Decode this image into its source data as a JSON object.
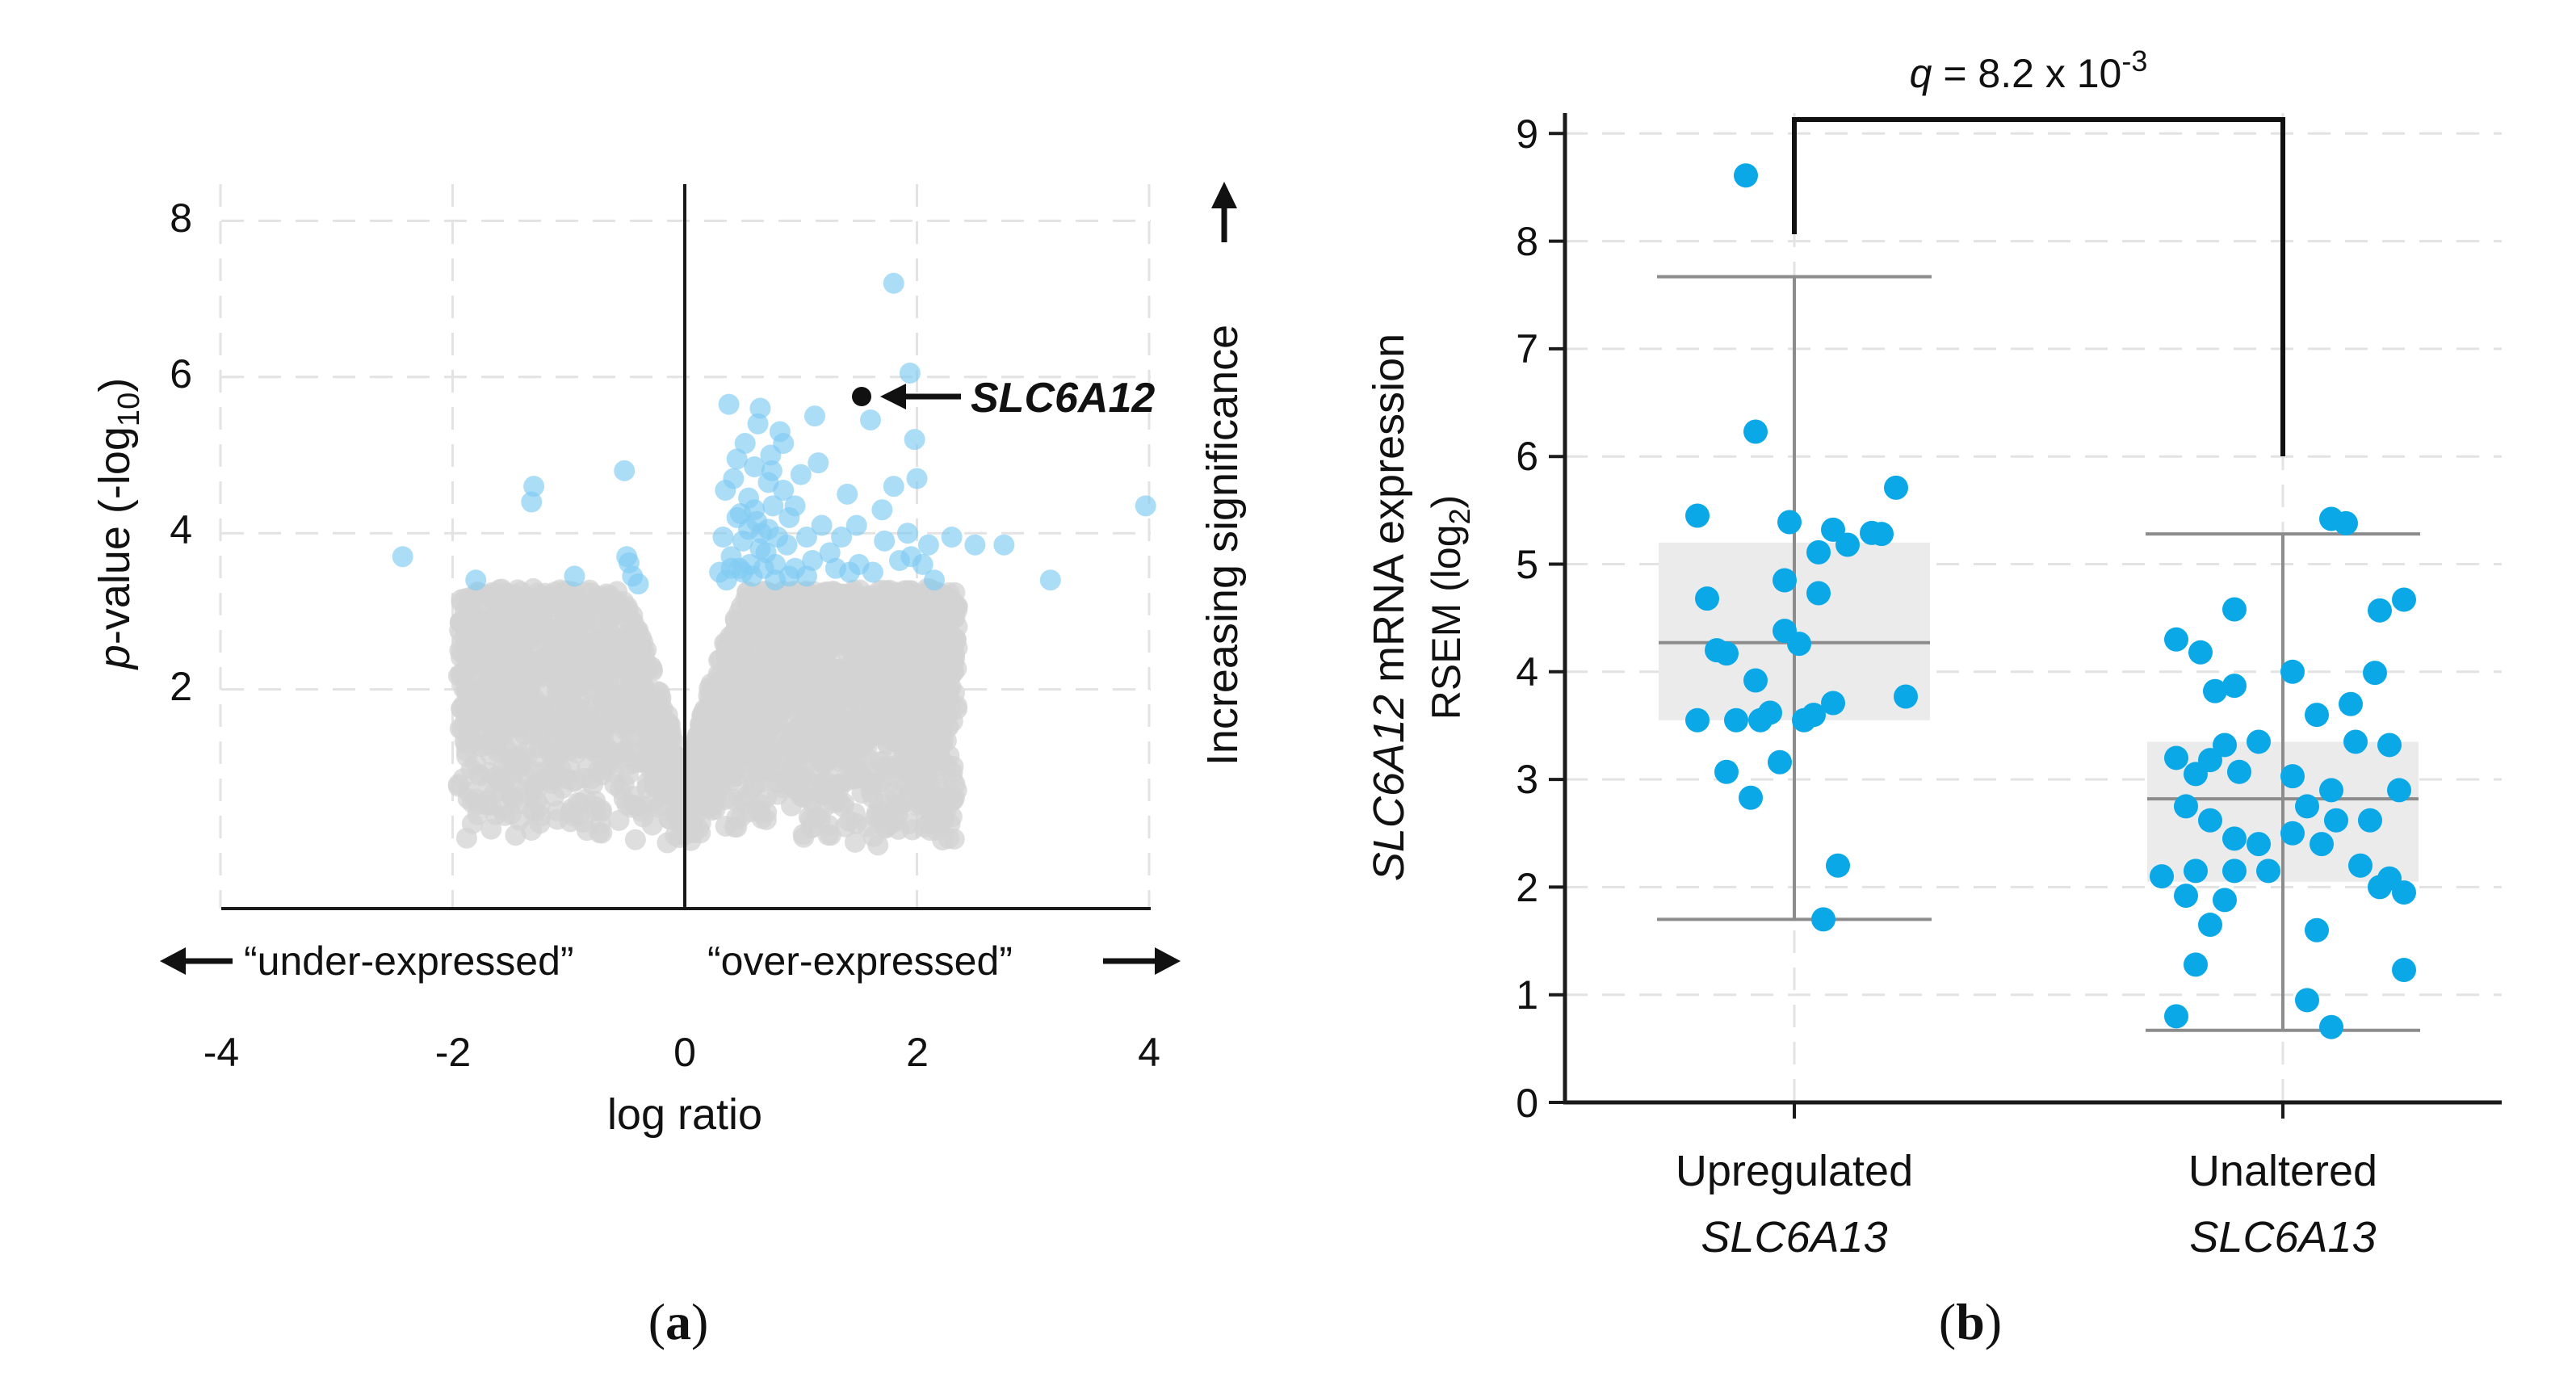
{
  "colors": {
    "highlight": "#0BA8E8",
    "highlight_light": "#7FCBF2",
    "background_points": "#D3D3D3",
    "box_fill": "#EBEBEB",
    "whisker": "#8C8C8C",
    "grid": "#E3E3E3",
    "axis": "#1A1A1A"
  },
  "panel_a": {
    "caption_open": "(",
    "caption_letter": "a",
    "caption_close": ")",
    "y_label_italic": "p",
    "y_label_rest": "-value (-log",
    "y_label_sub": "10",
    "y_label_close": ")",
    "x_label": "log ratio",
    "x_ticks": [
      "-4",
      "-2",
      "0",
      "2",
      "4"
    ],
    "y_ticks": [
      "2",
      "4",
      "6",
      "8"
    ],
    "under_label": "“under-expressed”",
    "over_label": "“over-expressed”",
    "right_label": "Increasing significance",
    "gene_label": "SLC6A12"
  },
  "panel_b": {
    "caption_open": "(",
    "caption_letter": "b",
    "caption_close": ")",
    "y_label_line1_italic": "SLC6A12",
    "y_label_line1_rest": " mRNA expression",
    "y_label_line2": "RSEM (log",
    "y_label_line2_sub": "2",
    "y_label_line2_close": ")",
    "q_italic": "q",
    "q_text": " = 8.2 x 10",
    "q_sup": "-3",
    "y_ticks": [
      "0",
      "1",
      "2",
      "3",
      "4",
      "5",
      "6",
      "7",
      "8",
      "9"
    ],
    "group1_line1": "Upregulated",
    "group1_line2": "SLC6A13",
    "group2_line1": "Unaltered",
    "group2_line2": "SLC6A13"
  },
  "chart_data": [
    {
      "type": "scatter",
      "title": "",
      "xlabel": "log ratio",
      "ylabel": "p-value (-log10)",
      "xlim": [
        -4,
        4
      ],
      "ylim": [
        -0.8,
        8.6
      ],
      "x_ticks": [
        -4,
        -2,
        0,
        2,
        4
      ],
      "y_ticks": [
        2,
        4,
        6,
        8
      ],
      "grid": true,
      "annotations": [
        "“under-expressed”",
        "“over-expressed”",
        "Increasing significance",
        "SLC6A12"
      ],
      "highlighted_gene": {
        "name": "SLC6A12",
        "x": 1.53,
        "y": 5.7
      },
      "significant_points": [
        [
          -2.43,
          3.7
        ],
        [
          -1.8,
          3.4
        ],
        [
          -1.3,
          4.6
        ],
        [
          -1.32,
          4.4
        ],
        [
          -0.95,
          3.45
        ],
        [
          -0.52,
          4.8
        ],
        [
          -0.5,
          3.7
        ],
        [
          -0.48,
          3.62
        ],
        [
          -0.45,
          3.45
        ],
        [
          -0.4,
          3.35
        ],
        [
          0.38,
          5.65
        ],
        [
          0.45,
          4.2
        ],
        [
          0.4,
          3.7
        ],
        [
          0.36,
          3.4
        ],
        [
          0.33,
          3.95
        ],
        [
          0.47,
          3.55
        ],
        [
          0.52,
          5.15
        ],
        [
          0.55,
          4.45
        ],
        [
          0.5,
          3.9
        ],
        [
          0.56,
          3.6
        ],
        [
          0.6,
          4.3
        ],
        [
          0.63,
          5.4
        ],
        [
          0.65,
          5.6
        ],
        [
          0.66,
          4.0
        ],
        [
          0.7,
          3.75
        ],
        [
          0.72,
          4.65
        ],
        [
          0.74,
          5.0
        ],
        [
          0.76,
          4.35
        ],
        [
          0.78,
          3.6
        ],
        [
          0.8,
          3.95
        ],
        [
          0.82,
          5.3
        ],
        [
          0.85,
          4.55
        ],
        [
          0.88,
          3.85
        ],
        [
          0.9,
          4.2
        ],
        [
          0.95,
          3.55
        ],
        [
          1.0,
          4.75
        ],
        [
          1.05,
          3.95
        ],
        [
          1.1,
          3.65
        ],
        [
          1.12,
          5.5
        ],
        [
          1.18,
          4.1
        ],
        [
          1.25,
          3.75
        ],
        [
          1.35,
          3.95
        ],
        [
          1.4,
          4.5
        ],
        [
          1.42,
          3.5
        ],
        [
          1.48,
          4.1
        ],
        [
          1.6,
          5.45
        ],
        [
          1.7,
          4.3
        ],
        [
          1.72,
          3.9
        ],
        [
          1.8,
          4.6
        ],
        [
          1.85,
          3.65
        ],
        [
          1.92,
          4.0
        ],
        [
          1.94,
          6.05
        ],
        [
          1.95,
          3.7
        ],
        [
          2.0,
          4.7
        ],
        [
          2.05,
          3.6
        ],
        [
          2.1,
          3.85
        ],
        [
          2.15,
          3.4
        ],
        [
          2.3,
          3.95
        ],
        [
          2.5,
          3.85
        ],
        [
          2.75,
          3.85
        ],
        [
          3.15,
          3.4
        ],
        [
          3.97,
          4.35
        ],
        [
          1.8,
          7.2
        ],
        [
          1.98,
          5.2
        ],
        [
          0.45,
          4.95
        ],
        [
          0.58,
          3.45
        ],
        [
          0.68,
          3.55
        ],
        [
          0.9,
          3.45
        ],
        [
          1.05,
          3.45
        ],
        [
          0.42,
          4.7
        ],
        [
          0.6,
          4.85
        ],
        [
          0.75,
          4.8
        ],
        [
          0.85,
          5.15
        ],
        [
          0.95,
          4.35
        ],
        [
          1.15,
          4.9
        ],
        [
          1.3,
          3.55
        ],
        [
          0.5,
          3.5
        ],
        [
          0.62,
          4.15
        ],
        [
          0.72,
          4.05
        ],
        [
          0.55,
          4.05
        ],
        [
          0.4,
          3.55
        ],
        [
          0.48,
          4.25
        ],
        [
          0.65,
          3.8
        ],
        [
          0.78,
          3.4
        ],
        [
          1.5,
          3.6
        ],
        [
          1.62,
          3.5
        ],
        [
          0.3,
          3.5
        ],
        [
          0.35,
          4.55
        ]
      ]
    },
    {
      "type": "box",
      "title": "",
      "ylabel": "SLC6A12 mRNA expression RSEM (log2)",
      "ylim": [
        0,
        9
      ],
      "y_ticks": [
        0,
        1,
        2,
        3,
        4,
        5,
        6,
        7,
        8,
        9
      ],
      "grid": true,
      "categories": [
        "Upregulated SLC6A13",
        "Unaltered SLC6A13"
      ],
      "annotation": "q = 8.2 x 10-3",
      "boxes": [
        {
          "name": "Upregulated SLC6A13",
          "whisker_low": 1.7,
          "q1": 3.55,
          "median": 4.27,
          "q3": 5.2,
          "whisker_high": 7.67
        },
        {
          "name": "Unaltered SLC6A13",
          "whisker_low": 0.67,
          "q1": 2.05,
          "median": 2.82,
          "q3": 3.35,
          "whisker_high": 5.28
        }
      ],
      "series": [
        {
          "name": "Upregulated SLC6A13",
          "points": [
            [
              -0.1,
              8.61
            ],
            [
              -0.08,
              6.23
            ],
            [
              -0.2,
              5.45
            ],
            [
              -0.01,
              5.39
            ],
            [
              0.08,
              5.32
            ],
            [
              0.16,
              5.29
            ],
            [
              0.21,
              5.71
            ],
            [
              0.18,
              5.28
            ],
            [
              0.11,
              5.18
            ],
            [
              0.05,
              5.11
            ],
            [
              -0.18,
              4.68
            ],
            [
              -0.02,
              4.85
            ],
            [
              0.05,
              4.73
            ],
            [
              -0.02,
              4.38
            ],
            [
              0.01,
              4.26
            ],
            [
              -0.16,
              4.2
            ],
            [
              -0.14,
              4.17
            ],
            [
              -0.08,
              3.92
            ],
            [
              -0.12,
              3.55
            ],
            [
              -0.2,
              3.55
            ],
            [
              -0.07,
              3.55
            ],
            [
              -0.05,
              3.62
            ],
            [
              0.04,
              3.6
            ],
            [
              0.08,
              3.71
            ],
            [
              0.02,
              3.55
            ],
            [
              0.23,
              3.77
            ],
            [
              -0.03,
              3.16
            ],
            [
              -0.14,
              3.07
            ],
            [
              -0.09,
              2.83
            ],
            [
              0.09,
              2.2
            ],
            [
              0.06,
              1.7
            ]
          ]
        },
        {
          "name": "Unaltered SLC6A13",
          "points": [
            [
              0.1,
              5.42
            ],
            [
              0.13,
              5.38
            ],
            [
              -0.1,
              4.58
            ],
            [
              0.2,
              4.57
            ],
            [
              0.25,
              4.67
            ],
            [
              -0.22,
              4.3
            ],
            [
              -0.17,
              4.18
            ],
            [
              0.02,
              4.0
            ],
            [
              0.19,
              3.99
            ],
            [
              -0.1,
              3.87
            ],
            [
              -0.14,
              3.82
            ],
            [
              0.14,
              3.7
            ],
            [
              0.07,
              3.6
            ],
            [
              -0.05,
              3.35
            ],
            [
              -0.12,
              3.32
            ],
            [
              0.15,
              3.35
            ],
            [
              -0.22,
              3.2
            ],
            [
              -0.15,
              3.18
            ],
            [
              0.22,
              3.32
            ],
            [
              -0.18,
              3.05
            ],
            [
              -0.09,
              3.07
            ],
            [
              0.02,
              3.03
            ],
            [
              0.1,
              2.9
            ],
            [
              0.24,
              2.9
            ],
            [
              -0.2,
              2.75
            ],
            [
              -0.15,
              2.62
            ],
            [
              0.05,
              2.75
            ],
            [
              0.11,
              2.62
            ],
            [
              0.18,
              2.62
            ],
            [
              0.02,
              2.5
            ],
            [
              -0.1,
              2.45
            ],
            [
              -0.05,
              2.4
            ],
            [
              0.08,
              2.4
            ],
            [
              0.16,
              2.2
            ],
            [
              0.22,
              2.08
            ],
            [
              -0.25,
              2.1
            ],
            [
              -0.18,
              2.15
            ],
            [
              -0.1,
              2.15
            ],
            [
              -0.03,
              2.15
            ],
            [
              0.25,
              1.95
            ],
            [
              0.2,
              2.0
            ],
            [
              -0.2,
              1.92
            ],
            [
              -0.12,
              1.88
            ],
            [
              -0.15,
              1.65
            ],
            [
              0.07,
              1.6
            ],
            [
              -0.18,
              1.28
            ],
            [
              0.25,
              1.23
            ],
            [
              0.05,
              0.95
            ],
            [
              -0.22,
              0.8
            ],
            [
              0.1,
              0.7
            ]
          ]
        }
      ]
    }
  ]
}
